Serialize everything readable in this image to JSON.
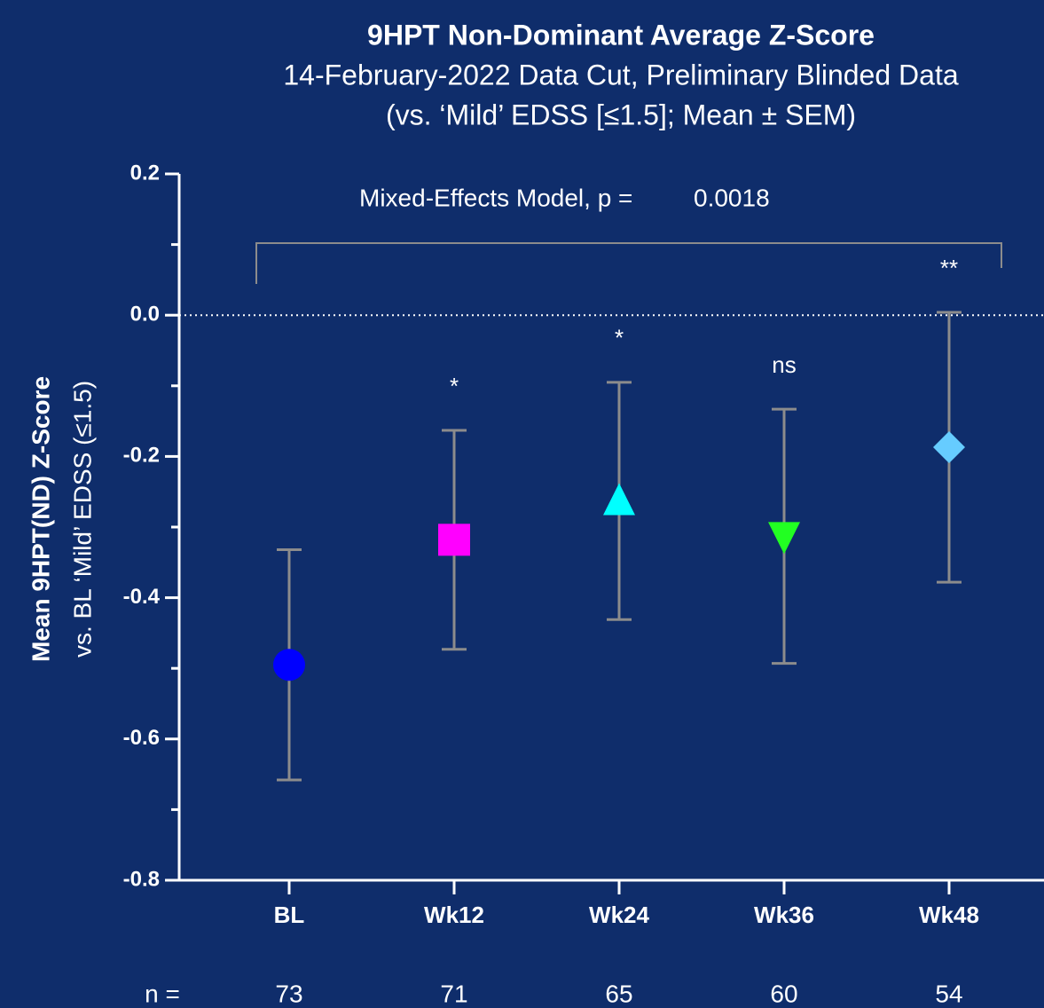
{
  "chart_data": {
    "type": "errorbar",
    "title": "9HPT Non-Dominant Average Z-Score",
    "subtitle": [
      "14-February-2022 Data Cut, Preliminary Blinded Data",
      "(vs. ‘Mild’ EDSS [≤1.5]; Mean ± SEM)"
    ],
    "ylabel": [
      "Mean 9HPT(ND) Z-Score",
      "vs. BL ‘Mild’ EDSS (≤1.5)"
    ],
    "annotation": {
      "text": "Mixed-Effects Model, p =",
      "value": "0.0018"
    },
    "categories": [
      "BL",
      "Wk12",
      "Wk24",
      "Wk36",
      "Wk48"
    ],
    "values": [
      -0.495,
      -0.318,
      -0.263,
      -0.313,
      -0.187
    ],
    "errors": [
      0.163,
      0.155,
      0.168,
      0.18,
      0.191
    ],
    "markers": [
      "circle",
      "square",
      "triangle-up",
      "triangle-down",
      "diamond"
    ],
    "colors": [
      "#0000ff",
      "#ff00ff",
      "#00ffff",
      "#22ff22",
      "#66ccff"
    ],
    "error_color": "#8c8c8c",
    "significance": [
      null,
      "*",
      "*",
      "ns",
      "**"
    ],
    "n_label": "n =",
    "n": [
      73,
      71,
      65,
      60,
      54
    ],
    "ylim": [
      -0.8,
      0.2
    ],
    "yticks": [
      0.2,
      {
        "value": 0,
        "label": "0.0"
      },
      -0.2,
      -0.4,
      -0.6,
      -0.8
    ],
    "yminorticks": [
      0.1,
      -0.1,
      -0.3,
      -0.5,
      -0.7
    ],
    "reference_line": 0
  }
}
